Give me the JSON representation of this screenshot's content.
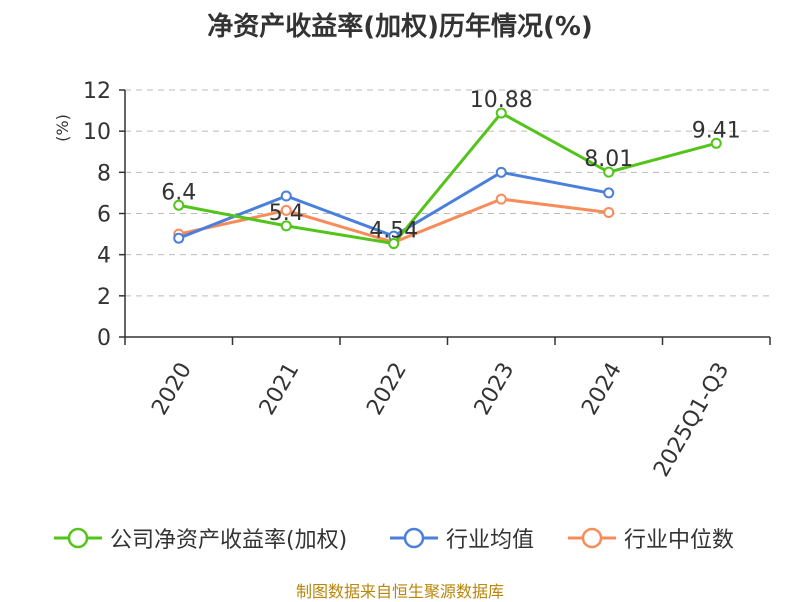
{
  "title": "净资产收益率(加权)历年情况(%)",
  "source": "制图数据来自恒生聚源数据库",
  "colors": {
    "company": "#52c41a",
    "industry_avg": "#4a7fdb",
    "industry_median": "#f78c5a",
    "grid": "#bbbbbb",
    "axis": "#333333",
    "ylabel": "#cc0000",
    "source": "#b8860b"
  },
  "chart_data": {
    "type": "line",
    "title": "净资产收益率(加权)历年情况(%)",
    "xlabel": "",
    "ylabel": "(%)",
    "ylim": [
      0,
      12
    ],
    "yticks": [
      0,
      2,
      4,
      6,
      8,
      10,
      12
    ],
    "grid": true,
    "legend_position": "bottom",
    "categories": [
      "2020",
      "2021",
      "2022",
      "2023",
      "2024",
      "2025Q1-Q3"
    ],
    "series": [
      {
        "name": "公司净资产收益率(加权)",
        "key": "company",
        "values": [
          6.4,
          5.4,
          4.54,
          10.88,
          8.01,
          9.41
        ],
        "labels": [
          "6.4",
          "5.4",
          "4.54",
          "10.88",
          "8.01",
          "9.41"
        ]
      },
      {
        "name": "行业均值",
        "key": "industry_avg",
        "values": [
          4.8,
          6.85,
          4.9,
          8.0,
          7.0,
          null
        ]
      },
      {
        "name": "行业中位数",
        "key": "industry_median",
        "values": [
          5.0,
          6.15,
          4.6,
          6.7,
          6.05,
          null
        ]
      }
    ]
  }
}
